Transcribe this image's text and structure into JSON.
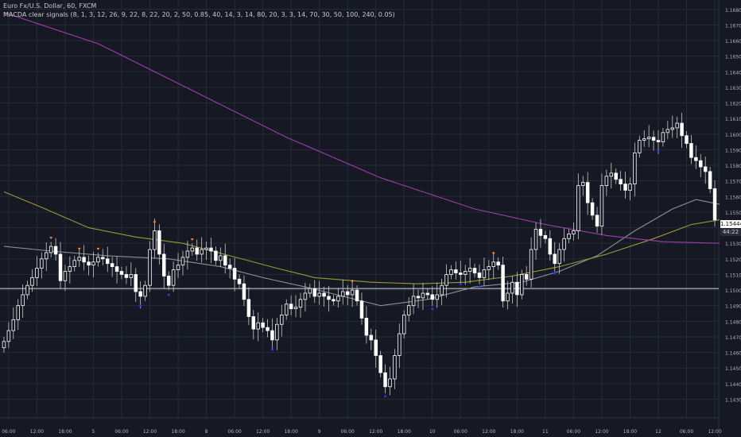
{
  "header": {
    "title": "Euro Fx/U.S. Dollar, 60, FXCM",
    "indicator": "MACDA clear signals (8, 1, 3, 12, 26, 9, 22, 8, 22, 20, 2, 50, 0.85, 40, 14, 3, 14, 80, 20, 3, 3, 14, 70, 30, 50, 100, 240, 0.05)"
  },
  "price_tags": {
    "last": "1.15444",
    "countdown": "44:22"
  },
  "colors": {
    "background": "#161924",
    "grid": "#262b3a",
    "candle_up": "#ffffff",
    "candle_down": "#ffffff",
    "sma_fast": "#8f8f99",
    "sma_mid": "#9a9a34",
    "sma_slow": "#9c3ea8",
    "reference_line": "#d8d8d8",
    "marker_sell": "#ff8c1a",
    "marker_buy": "#1e3cff",
    "label_red": "#d0243c",
    "label_green": "#2e8b3a"
  },
  "chart_data": {
    "type": "candlestick",
    "title": "Euro Fx/U.S. Dollar, 60, FXCM",
    "ylim": [
      1.1418,
      1.1686
    ],
    "yticks": [
      1.143,
      1.144,
      1.145,
      1.146,
      1.147,
      1.148,
      1.149,
      1.15,
      1.151,
      1.152,
      1.153,
      1.154,
      1.155,
      1.156,
      1.157,
      1.158,
      1.159,
      1.16,
      1.161,
      1.162,
      1.163,
      1.164,
      1.165,
      1.166,
      1.167,
      1.168
    ],
    "ytick_labels": [
      "1.14300",
      "1.14400",
      "1.14500",
      "1.14600",
      "1.14700",
      "1.14800",
      "1.14900",
      "1.15000",
      "1.15100",
      "1.15200",
      "1.15300",
      "1.15400",
      "1.15500",
      "1.15600",
      "1.15700",
      "1.15800",
      "1.15900",
      "1.16000",
      "1.16100",
      "1.16200",
      "1.16300",
      "1.16400",
      "1.16500",
      "1.16600",
      "1.16700",
      "1.16800"
    ],
    "xticks": [
      {
        "bar": 1,
        "label": "06:00"
      },
      {
        "bar": 7,
        "label": "12:00"
      },
      {
        "bar": 13,
        "label": "18:00"
      },
      {
        "bar": 19,
        "label": "5"
      },
      {
        "bar": 25,
        "label": "06:00"
      },
      {
        "bar": 31,
        "label": "12:00"
      },
      {
        "bar": 37,
        "label": "18:00"
      },
      {
        "bar": 43,
        "label": "8"
      },
      {
        "bar": 49,
        "label": "06:00"
      },
      {
        "bar": 55,
        "label": "12:00"
      },
      {
        "bar": 61,
        "label": "18:00"
      },
      {
        "bar": 67,
        "label": "9"
      },
      {
        "bar": 73,
        "label": "06:00"
      },
      {
        "bar": 79,
        "label": "12:00"
      },
      {
        "bar": 85,
        "label": "18:00"
      },
      {
        "bar": 91,
        "label": "10"
      },
      {
        "bar": 97,
        "label": "06:00"
      },
      {
        "bar": 103,
        "label": "12:00"
      },
      {
        "bar": 109,
        "label": "18:00"
      },
      {
        "bar": 115,
        "label": "11"
      },
      {
        "bar": 121,
        "label": "06:00"
      },
      {
        "bar": 127,
        "label": "12:00"
      },
      {
        "bar": 133,
        "label": "18:00"
      },
      {
        "bar": 139,
        "label": "12"
      },
      {
        "bar": 145,
        "label": "06:00"
      },
      {
        "bar": 151,
        "label": "12:00"
      }
    ],
    "reference_line": 1.1501,
    "closes": [
      1.1467,
      1.1474,
      1.1481,
      1.149,
      1.1497,
      1.1503,
      1.1508,
      1.1514,
      1.152,
      1.1524,
      1.1528,
      1.1523,
      1.1506,
      1.1512,
      1.1515,
      1.1519,
      1.1521,
      1.1518,
      1.1516,
      1.1518,
      1.1521,
      1.152,
      1.1517,
      1.1515,
      1.1512,
      1.151,
      1.1508,
      1.151,
      1.1499,
      1.1496,
      1.1503,
      1.1526,
      1.1538,
      1.1523,
      1.1509,
      1.1503,
      1.1513,
      1.1516,
      1.1521,
      1.1525,
      1.1527,
      1.1523,
      1.1526,
      1.1527,
      1.1525,
      1.1519,
      1.1522,
      1.1516,
      1.1514,
      1.1507,
      1.1504,
      1.1494,
      1.1483,
      1.1475,
      1.1479,
      1.1476,
      1.1474,
      1.1468,
      1.1478,
      1.1484,
      1.1491,
      1.1488,
      1.1489,
      1.1494,
      1.1498,
      1.1501,
      1.1496,
      1.1498,
      1.1496,
      1.1494,
      1.1493,
      1.1496,
      1.1499,
      1.1497,
      1.15,
      1.1493,
      1.1482,
      1.1471,
      1.1468,
      1.1458,
      1.1447,
      1.1438,
      1.1443,
      1.1458,
      1.1472,
      1.1484,
      1.149,
      1.1496,
      1.1495,
      1.1498,
      1.1497,
      1.1494,
      1.1497,
      1.1503,
      1.151,
      1.1513,
      1.1511,
      1.151,
      1.1512,
      1.1514,
      1.1511,
      1.1508,
      1.1513,
      1.1515,
      1.1518,
      1.1516,
      1.1493,
      1.1498,
      1.1505,
      1.1497,
      1.151,
      1.1507,
      1.1526,
      1.1539,
      1.1535,
      1.1533,
      1.1523,
      1.1517,
      1.1526,
      1.1533,
      1.1536,
      1.1538,
      1.1567,
      1.1569,
      1.1556,
      1.1548,
      1.1541,
      1.1567,
      1.1573,
      1.1575,
      1.1571,
      1.1568,
      1.1564,
      1.1568,
      1.1588,
      1.1596,
      1.1597,
      1.1598,
      1.1596,
      1.1595,
      1.1601,
      1.1603,
      1.1604,
      1.1607,
      1.1599,
      1.1594,
      1.1585,
      1.1583,
      1.1579,
      1.1576,
      1.1565,
      1.1545
    ],
    "series": [
      {
        "name": "",
        "color": "#8f8f99",
        "points": [
          [
            0,
            1.1528
          ],
          [
            10,
            1.1525
          ],
          [
            22,
            1.1522
          ],
          [
            35,
            1.152
          ],
          [
            46,
            1.1515
          ],
          [
            55,
            1.1508
          ],
          [
            64,
            1.1502
          ],
          [
            72,
            1.1496
          ],
          [
            80,
            1.149
          ],
          [
            90,
            1.1494
          ],
          [
            100,
            1.1502
          ],
          [
            110,
            1.1505
          ],
          [
            118,
            1.1512
          ],
          [
            126,
            1.1522
          ],
          [
            134,
            1.1538
          ],
          [
            142,
            1.1552
          ],
          [
            147,
            1.1558
          ],
          [
            152,
            1.1555
          ]
        ]
      },
      {
        "name": "",
        "color": "#9a9a34",
        "points": [
          [
            0,
            1.1563
          ],
          [
            8,
            1.1553
          ],
          [
            18,
            1.154
          ],
          [
            28,
            1.1534
          ],
          [
            38,
            1.153
          ],
          [
            48,
            1.1522
          ],
          [
            58,
            1.1514
          ],
          [
            66,
            1.1508
          ],
          [
            78,
            1.1505
          ],
          [
            88,
            1.1504
          ],
          [
            98,
            1.1505
          ],
          [
            108,
            1.1509
          ],
          [
            118,
            1.1515
          ],
          [
            128,
            1.1523
          ],
          [
            138,
            1.1533
          ],
          [
            146,
            1.1542
          ],
          [
            152,
            1.1545
          ]
        ]
      },
      {
        "name": "",
        "color": "#9c3ea8",
        "points": [
          [
            0,
            1.1678
          ],
          [
            20,
            1.1658
          ],
          [
            40,
            1.1628
          ],
          [
            60,
            1.1598
          ],
          [
            80,
            1.1572
          ],
          [
            100,
            1.1552
          ],
          [
            115,
            1.1542
          ],
          [
            128,
            1.1535
          ],
          [
            140,
            1.1531
          ],
          [
            152,
            1.153
          ]
        ]
      }
    ]
  }
}
